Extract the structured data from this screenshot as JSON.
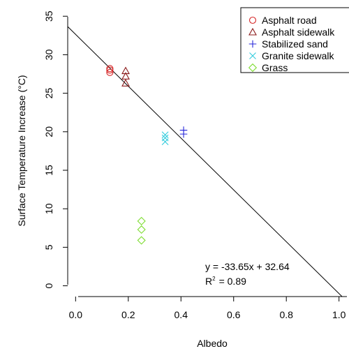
{
  "chart_data": {
    "type": "scatter",
    "title": "",
    "xlabel": "Albedo",
    "ylabel": "Surface Temperature Increase (°C)",
    "xlim": [
      -0.03,
      1.03
    ],
    "ylim": [
      -1.4,
      36.2
    ],
    "xticks": [
      0.0,
      0.2,
      0.4,
      0.6,
      0.8,
      1.0
    ],
    "xtick_labels": [
      "0.0",
      "0.2",
      "0.4",
      "0.6",
      "0.8",
      "1.0"
    ],
    "yticks": [
      0,
      5,
      10,
      15,
      20,
      25,
      30,
      35
    ],
    "ytick_labels": [
      "0",
      "5",
      "10",
      "15",
      "20",
      "25",
      "30",
      "35"
    ],
    "grid": false,
    "legend_position": "top-right",
    "series": [
      {
        "name": "Asphalt road",
        "marker": "circle",
        "color": "#d62728",
        "x": [
          0.13,
          0.13,
          0.13
        ],
        "y": [
          28.2,
          27.7,
          28.0
        ]
      },
      {
        "name": "Asphalt sidewalk",
        "marker": "triangle",
        "color": "#8b1a1a",
        "x": [
          0.19,
          0.19,
          0.19
        ],
        "y": [
          27.9,
          27.2,
          26.3
        ]
      },
      {
        "name": "Stabilized sand",
        "marker": "plus",
        "color": "#2626d9",
        "x": [
          0.41,
          0.41
        ],
        "y": [
          20.2,
          19.7
        ]
      },
      {
        "name": "Granite sidewalk",
        "marker": "x",
        "color": "#33ccdd",
        "x": [
          0.34,
          0.34,
          0.34
        ],
        "y": [
          19.6,
          19.2,
          18.7
        ]
      },
      {
        "name": "Grass",
        "marker": "diamond",
        "color": "#7fdd33",
        "x": [
          0.25,
          0.25,
          0.25
        ],
        "y": [
          8.4,
          7.3,
          5.9
        ]
      }
    ],
    "regression": {
      "slope": -33.65,
      "intercept": 32.64,
      "color": "#000000"
    },
    "annotations": {
      "equation": "y = -33.65x + 32.64",
      "r_squared_prefix": "R",
      "r_squared_sup": "2",
      "r_squared_value": "= 0.89"
    }
  }
}
